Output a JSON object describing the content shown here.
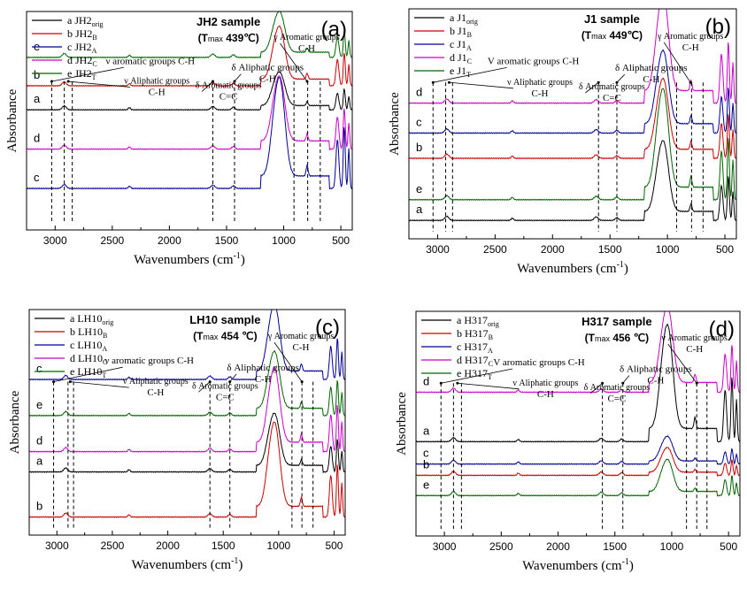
{
  "chart_data": [
    {
      "type": "line",
      "panel_label": "(a)",
      "title": "JH2 sample",
      "subtitle_prefix": "(T",
      "subtitle_sub": "max",
      "subtitle_value": " 439℃)",
      "xlabel": "Wavenumbers (cm",
      "xlabel_sup": "-1",
      "xlabel_suffix": ")",
      "ylabel": "Absorbance",
      "xlim": [
        3250,
        400
      ],
      "xticks": [
        3000,
        2500,
        2000,
        1500,
        1000,
        500
      ],
      "ylim": [
        0,
        10
      ],
      "legend_placement": "top-left",
      "legend": [
        {
          "key": "a",
          "name": "JH2",
          "sub": "orig",
          "color": "#000000"
        },
        {
          "key": "b",
          "name": "JH2",
          "sub": "B",
          "color": "#cc0000"
        },
        {
          "key": "c",
          "name": "JH2",
          "sub": "A",
          "color": "#000099"
        },
        {
          "key": "d",
          "name": " JH2",
          "sub": "C",
          "color": "#cc00cc"
        },
        {
          "key": "e",
          "name": "JH2",
          "sub": "T",
          "color": "#006600"
        }
      ],
      "stack_order_top_to_bottom": [
        "e",
        "b",
        "a",
        "d",
        "c"
      ],
      "series": [
        {
          "key": "e",
          "baseline": 7.9,
          "peak1030": 9.6,
          "color": "#006600"
        },
        {
          "key": "b",
          "baseline": 6.6,
          "peak1030": 8.8,
          "color": "#cc0000"
        },
        {
          "key": "a",
          "baseline": 5.5,
          "peak1030": 6.9,
          "color": "#000000"
        },
        {
          "key": "d",
          "baseline": 3.7,
          "peak1030": 6.4,
          "color": "#cc00cc"
        },
        {
          "key": "c",
          "baseline": 1.9,
          "peak1030": 6.0,
          "color": "#000099"
        }
      ],
      "reference_lines": [
        3030,
        2920,
        2850,
        1620,
        1430,
        910,
        790,
        680
      ],
      "annotations": [
        {
          "text": "ν aromatic groups C-H",
          "target": 3030
        },
        {
          "text": "ν Aliphatic groups",
          "text2": "C-H",
          "target": 2885
        },
        {
          "text": "δ Aromatic groups",
          "text2": "C=C",
          "target": 1620
        },
        {
          "text": "δ Aliphatic groups",
          "text2": "C-H",
          "target": 1430
        },
        {
          "text": "γ Aromatic groups",
          "text2": "C-H",
          "target": 795
        }
      ]
    },
    {
      "type": "line",
      "panel_label": "(b)",
      "title": "J1 sample",
      "subtitle_prefix": "(T",
      "subtitle_sub": "max",
      "subtitle_value": " 449℃)",
      "xlabel": "Wavenumbers (cm",
      "xlabel_sup": "-1",
      "xlabel_suffix": ")",
      "ylabel": "Absorbance",
      "xlim": [
        3250,
        400
      ],
      "xticks": [
        3000,
        2500,
        2000,
        1500,
        1000,
        500
      ],
      "ylim": [
        0,
        10
      ],
      "legend_placement": "top-left",
      "legend": [
        {
          "key": "a",
          "name": "J1",
          "sub": "orig",
          "color": "#000000"
        },
        {
          "key": "b",
          "name": "J1",
          "sub": "B",
          "color": "#cc0000"
        },
        {
          "key": "c",
          "name": "J1",
          "sub": "A",
          "color": "#000099"
        },
        {
          "key": "d",
          "name": "J1",
          "sub": "C",
          "color": "#cc00cc"
        },
        {
          "key": "e",
          "name": "J1",
          "sub": "T",
          "color": "#006600"
        }
      ],
      "stack_order_top_to_bottom": [
        "d",
        "c",
        "b",
        "e",
        "a"
      ],
      "series": [
        {
          "key": "d",
          "baseline": 5.9,
          "peak1030": 9.8,
          "color": "#cc00cc"
        },
        {
          "key": "c",
          "baseline": 4.6,
          "peak1030": 7.5,
          "color": "#000099"
        },
        {
          "key": "b",
          "baseline": 3.5,
          "peak1030": 6.3,
          "color": "#cc0000"
        },
        {
          "key": "e",
          "baseline": 1.7,
          "peak1030": 5.6,
          "color": "#006600"
        },
        {
          "key": "a",
          "baseline": 0.8,
          "peak1030": 3.6,
          "color": "#000000"
        }
      ],
      "reference_lines": [
        3040,
        2930,
        2870,
        1600,
        1440,
        920,
        790,
        690
      ],
      "annotations": [
        {
          "text": "V aromatic groups C-H",
          "target": 3040
        },
        {
          "text": "ν Aliphatic groups",
          "text2": "C-H",
          "target": 2900
        },
        {
          "text": "δ Aromatic groups",
          "text2": "C=C",
          "target": 1600
        },
        {
          "text": "δ Aliphatic groups",
          "text2": "C-H",
          "target": 1440
        },
        {
          "text": "γ Aromatic groups",
          "text2": "C-H",
          "target": 800
        }
      ]
    },
    {
      "type": "line",
      "panel_label": "(c)",
      "title": "LH10 sample",
      "subtitle_prefix": "(T",
      "subtitle_sub": "max",
      "subtitle_value": " 454 ℃)",
      "xlabel": "Wavenumbers (cm",
      "xlabel_sup": "-1",
      "xlabel_suffix": ")",
      "ylabel": "Absorbance",
      "xlim": [
        3250,
        400
      ],
      "xticks": [
        3000,
        2500,
        2000,
        1500,
        1000,
        500
      ],
      "ylim": [
        0,
        10
      ],
      "legend_placement": "top-left",
      "legend": [
        {
          "key": "a",
          "name": "LH10",
          "sub": "orig",
          "color": "#000000"
        },
        {
          "key": "b",
          "name": "LH10",
          "sub": "B",
          "color": "#cc0000"
        },
        {
          "key": "c",
          "name": "LH10",
          "sub": "A",
          "color": "#000099"
        },
        {
          "key": "d",
          "name": "LH10",
          "sub": "C",
          "color": "#cc00cc"
        },
        {
          "key": "e",
          "name": "LH10",
          "sub": "T",
          "color": "#006600"
        }
      ],
      "stack_order_top_to_bottom": [
        "c",
        "e",
        "d",
        "a",
        "b"
      ],
      "series": [
        {
          "key": "c",
          "baseline": 6.9,
          "peak1030": 9.6,
          "color": "#000099"
        },
        {
          "key": "e",
          "baseline": 5.3,
          "peak1030": 7.6,
          "color": "#006600"
        },
        {
          "key": "d",
          "baseline": 3.7,
          "peak1030": 6.7,
          "color": "#cc00cc"
        },
        {
          "key": "a",
          "baseline": 2.8,
          "peak1030": 4.9,
          "color": "#000000"
        },
        {
          "key": "b",
          "baseline": 0.8,
          "peak1030": 4.2,
          "color": "#cc0000"
        }
      ],
      "reference_lines": [
        3030,
        2900,
        2850,
        1620,
        1440,
        880,
        790,
        690
      ],
      "annotations": [
        {
          "text": "ν aromatic groups C-H",
          "target": 3030
        },
        {
          "text": "ν Aliphatic groups",
          "text2": "C-H",
          "target": 2880
        },
        {
          "text": "δ Aromatic groups",
          "text2": "C=C",
          "target": 1620
        },
        {
          "text": "δ Aliphatic groups",
          "text2": "C-H",
          "target": 1440
        },
        {
          "text": "γ Aromatic groups",
          "text2": "C-H",
          "target": 790
        }
      ]
    },
    {
      "type": "line",
      "panel_label": "(d)",
      "title": "H317 sample",
      "subtitle_prefix": "(T",
      "subtitle_sub": "max",
      "subtitle_value": " 456 ℃)",
      "xlabel": "Wavenumbers (cm",
      "xlabel_sup": "-1",
      "xlabel_suffix": ")",
      "ylabel": "Absorbance",
      "xlim": [
        3250,
        400
      ],
      "xticks": [
        3000,
        2500,
        2000,
        1500,
        1000,
        500
      ],
      "ylim": [
        0,
        10
      ],
      "legend_placement": "top-left",
      "legend": [
        {
          "key": "a",
          "name": "H317",
          "sub": "orig",
          "color": "#000000"
        },
        {
          "key": "b",
          "name": "H317",
          "sub": "B",
          "color": "#cc0000"
        },
        {
          "key": "c",
          "name": "H317",
          "sub": "A",
          "color": "#000099"
        },
        {
          "key": "d",
          "name": "H317",
          "sub": "C",
          "color": "#cc00cc"
        },
        {
          "key": "e",
          "name": "H317",
          "sub": "T",
          "color": "#006600"
        }
      ],
      "stack_order_top_to_bottom": [
        "d",
        "a",
        "c",
        "b",
        "e"
      ],
      "series": [
        {
          "key": "d",
          "baseline": 6.4,
          "peak1030": 9.5,
          "color": "#cc00cc"
        },
        {
          "key": "a",
          "baseline": 4.2,
          "peak1030": 8.4,
          "color": "#000000"
        },
        {
          "key": "c",
          "baseline": 3.2,
          "peak1030": 4.2,
          "color": "#000099"
        },
        {
          "key": "b",
          "baseline": 2.7,
          "peak1030": 3.7,
          "color": "#cc0000"
        },
        {
          "key": "e",
          "baseline": 1.8,
          "peak1030": 3.1,
          "color": "#006600"
        }
      ],
      "reference_lines": [
        3030,
        2920,
        2850,
        1610,
        1430,
        870,
        780,
        690
      ],
      "annotations": [
        {
          "text": "V aromatic groups C-H",
          "target": 3030
        },
        {
          "text": "ν Aliphatic groups",
          "text2": "C-H",
          "target": 2885
        },
        {
          "text": "δ Aromatic groups",
          "text2": "C=C",
          "target": 1610
        },
        {
          "text": "δ Aliphatic groups",
          "text2": "C-H",
          "target": 1430
        },
        {
          "text": "γ Aromatic groups",
          "text2": "C-H",
          "target": 780
        }
      ]
    }
  ]
}
